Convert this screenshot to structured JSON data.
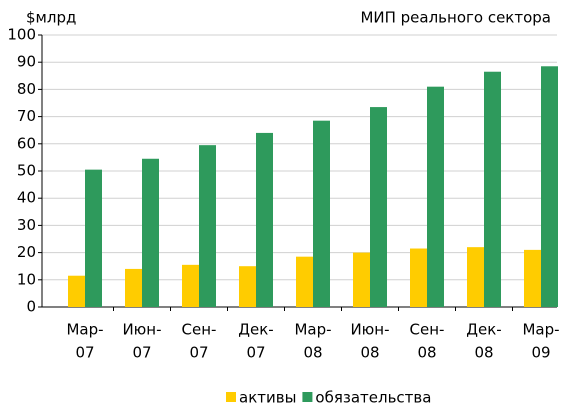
{
  "chart_data": {
    "type": "bar",
    "title": "МИП реального сектора",
    "y_label": "$млрд",
    "categories": [
      [
        "Мар-",
        "07"
      ],
      [
        "Июн-",
        "07"
      ],
      [
        "Сен-",
        "07"
      ],
      [
        "Дек-",
        "07"
      ],
      [
        "Мар-",
        "08"
      ],
      [
        "Июн-",
        "08"
      ],
      [
        "Сен-",
        "08"
      ],
      [
        "Дек-",
        "08"
      ],
      [
        "Мар-",
        "09"
      ]
    ],
    "series": [
      {
        "name": "активы",
        "color": "#ffcc00",
        "values": [
          11.5,
          14,
          15.5,
          15,
          18.5,
          20,
          21.5,
          22,
          21
        ]
      },
      {
        "name": "обязательства",
        "color": "#2e9a5c",
        "values": [
          50.5,
          54.5,
          59.5,
          64,
          68.5,
          73.5,
          81,
          86.5,
          88.5
        ]
      }
    ],
    "ylim": [
      0,
      100
    ],
    "yticks": [
      0,
      10,
      20,
      30,
      40,
      50,
      60,
      70,
      80,
      90,
      100
    ],
    "grid": true,
    "legend": "bottom"
  }
}
